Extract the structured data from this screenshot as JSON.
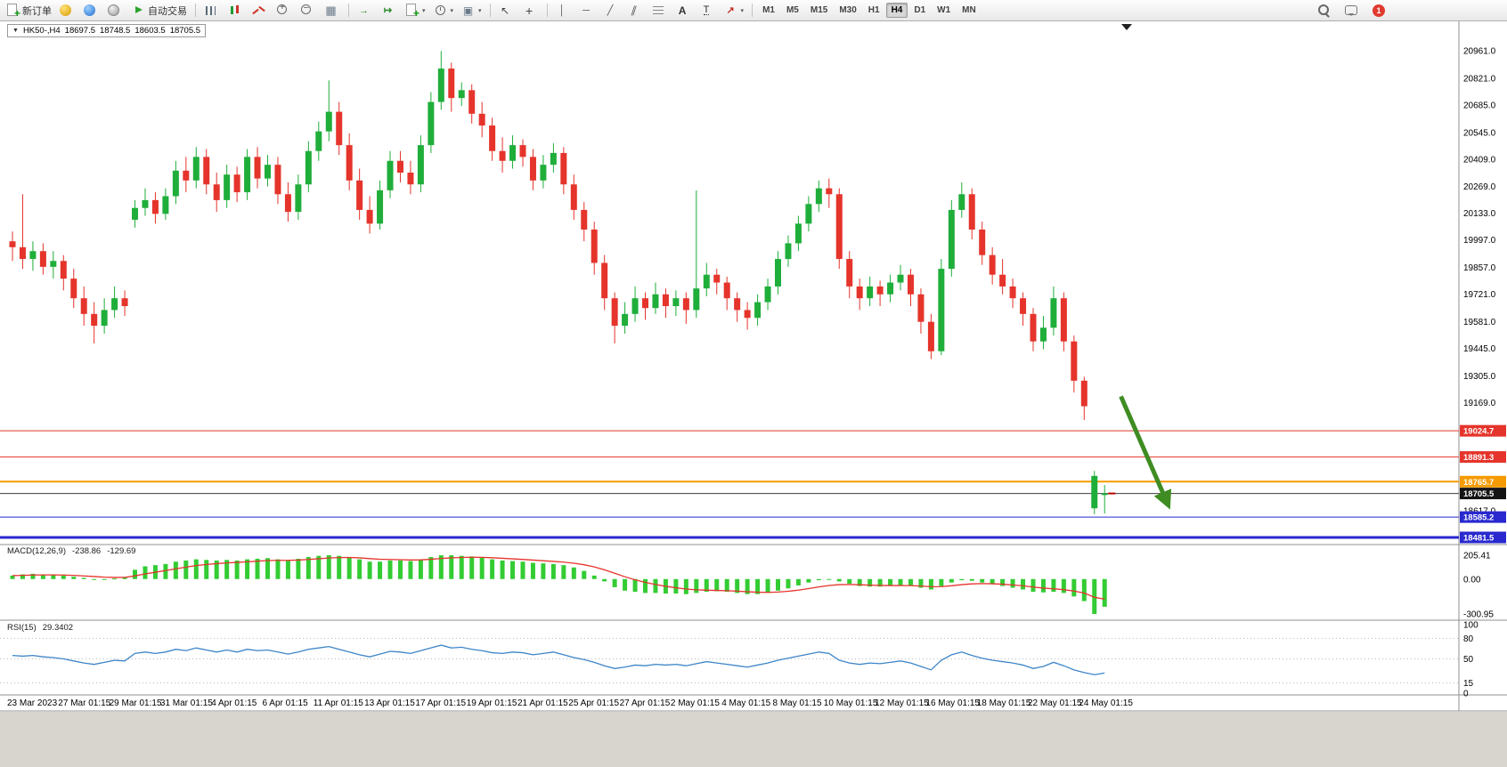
{
  "window": {
    "symbol_period": "HK50-,H4",
    "open": "18697.5",
    "high": "18748.5",
    "low": "18603.5",
    "close": "18705.5",
    "collapse_glyph": "▼"
  },
  "toolbar": {
    "dropdown_glyph": "▾",
    "groups": [
      {
        "type": "buttons",
        "items": [
          {
            "name": "new-order",
            "icon": "neworder",
            "label": "新订单"
          }
        ]
      },
      {
        "type": "buttons",
        "items": [
          {
            "name": "deposit",
            "icon": "gold"
          },
          {
            "name": "web-terminal",
            "icon": "globe"
          },
          {
            "name": "community",
            "icon": "round"
          }
        ]
      },
      {
        "type": "buttons",
        "items": [
          {
            "name": "autotrading",
            "icon": "play",
            "label": "自动交易"
          }
        ]
      },
      {
        "type": "sep"
      },
      {
        "type": "buttons",
        "items": [
          {
            "name": "bar-chart",
            "icon": "bars"
          },
          {
            "name": "candlestick-chart",
            "icon": "candle"
          },
          {
            "name": "line-chart",
            "icon": "linechart"
          }
        ]
      },
      {
        "type": "buttons",
        "items": [
          {
            "name": "zoom-in",
            "icon": "zin"
          },
          {
            "name": "zoom-out",
            "icon": "zout"
          }
        ]
      },
      {
        "type": "buttons",
        "items": [
          {
            "name": "tile-windows",
            "icon": "grid"
          }
        ]
      },
      {
        "type": "sep"
      },
      {
        "type": "buttons",
        "items": [
          {
            "name": "auto-scroll",
            "icon": "autoscroll"
          },
          {
            "name": "chart-shift",
            "icon": "shift"
          }
        ]
      },
      {
        "type": "buttons",
        "items": [
          {
            "name": "new-chart",
            "icon": "newchart",
            "dd": true
          },
          {
            "name": "periods",
            "icon": "clock",
            "dd": true
          },
          {
            "name": "templates",
            "icon": "template",
            "dd": true
          }
        ]
      },
      {
        "type": "sep"
      },
      {
        "type": "buttons",
        "items": [
          {
            "name": "cursor",
            "icon": "cursor"
          },
          {
            "name": "crosshair",
            "icon": "cross"
          }
        ]
      },
      {
        "type": "sep"
      },
      {
        "type": "buttons",
        "items": [
          {
            "name": "vertical-line",
            "icon": "vline"
          },
          {
            "name": "horizontal-line",
            "icon": "hline"
          },
          {
            "name": "trendline",
            "icon": "tline"
          },
          {
            "name": "equidistant-channel",
            "icon": "channel"
          },
          {
            "name": "fibonacci",
            "icon": "fibo"
          },
          {
            "name": "text",
            "icon": "textA"
          },
          {
            "name": "text-label",
            "icon": "label"
          },
          {
            "name": "arrows",
            "icon": "arrowtool",
            "dd": true
          }
        ]
      },
      {
        "type": "sep"
      },
      {
        "type": "timeframes"
      }
    ],
    "timeframes": [
      {
        "label": "M1"
      },
      {
        "label": "M5"
      },
      {
        "label": "M15"
      },
      {
        "label": "M30"
      },
      {
        "label": "H1"
      },
      {
        "label": "H4"
      },
      {
        "label": "D1"
      },
      {
        "label": "W1"
      },
      {
        "label": "MN"
      }
    ],
    "active_timeframe": "H4",
    "right": [
      {
        "name": "search",
        "icon": "searchm"
      },
      {
        "name": "chat",
        "icon": "chat"
      },
      {
        "name": "notifications",
        "icon": "badge",
        "badge": "1"
      }
    ]
  },
  "chart_data": {
    "type": "candlestick",
    "symbol": "HK50-",
    "timeframe": "H4",
    "axis_top_price": 20961,
    "axis_bottom_price": 18481.5,
    "price_axis_labels": [
      "20961.0",
      "20821.0",
      "20685.0",
      "20545.0",
      "20409.0",
      "20269.0",
      "20133.0",
      "19997.0",
      "19857.0",
      "19721.0",
      "19581.0",
      "19445.0",
      "19305.0",
      "19169.0",
      "18617.0"
    ],
    "colors": {
      "bull": "#1fae3a",
      "bear": "#e5342b"
    },
    "candles": [
      [
        19990,
        20040,
        19890,
        19960
      ],
      [
        19960,
        20230,
        19850,
        19900
      ],
      [
        19900,
        19990,
        19840,
        19940
      ],
      [
        19940,
        19980,
        19820,
        19860
      ],
      [
        19860,
        19940,
        19800,
        19890
      ],
      [
        19890,
        19920,
        19740,
        19800
      ],
      [
        19800,
        19850,
        19650,
        19700
      ],
      [
        19700,
        19760,
        19560,
        19620
      ],
      [
        19620,
        19680,
        19470,
        19560
      ],
      [
        19560,
        19700,
        19520,
        19640
      ],
      [
        19640,
        19760,
        19600,
        19700
      ],
      [
        19700,
        19740,
        19610,
        19660
      ],
      [
        20100,
        20200,
        20060,
        20160
      ],
      [
        20160,
        20260,
        20120,
        20200
      ],
      [
        20200,
        20240,
        20080,
        20130
      ],
      [
        20130,
        20260,
        20100,
        20220
      ],
      [
        20220,
        20400,
        20180,
        20350
      ],
      [
        20350,
        20420,
        20240,
        20300
      ],
      [
        20300,
        20470,
        20260,
        20420
      ],
      [
        20420,
        20460,
        20230,
        20280
      ],
      [
        20280,
        20340,
        20140,
        20200
      ],
      [
        20200,
        20380,
        20160,
        20330
      ],
      [
        20330,
        20370,
        20190,
        20240
      ],
      [
        20240,
        20460,
        20200,
        20420
      ],
      [
        20420,
        20470,
        20260,
        20310
      ],
      [
        20310,
        20430,
        20270,
        20380
      ],
      [
        20380,
        20420,
        20180,
        20230
      ],
      [
        20230,
        20290,
        20090,
        20140
      ],
      [
        20140,
        20330,
        20100,
        20280
      ],
      [
        20280,
        20500,
        20240,
        20450
      ],
      [
        20450,
        20600,
        20400,
        20550
      ],
      [
        20550,
        20810,
        20500,
        20650
      ],
      [
        20650,
        20700,
        20430,
        20480
      ],
      [
        20480,
        20540,
        20250,
        20300
      ],
      [
        20300,
        20360,
        20100,
        20150
      ],
      [
        20150,
        20220,
        20030,
        20080
      ],
      [
        20080,
        20300,
        20050,
        20250
      ],
      [
        20250,
        20450,
        20210,
        20400
      ],
      [
        20400,
        20450,
        20290,
        20340
      ],
      [
        20340,
        20400,
        20230,
        20280
      ],
      [
        20280,
        20530,
        20240,
        20480
      ],
      [
        20480,
        20750,
        20440,
        20700
      ],
      [
        20700,
        20960,
        20660,
        20870
      ],
      [
        20870,
        20900,
        20650,
        20720
      ],
      [
        20720,
        20800,
        20680,
        20760
      ],
      [
        20760,
        20790,
        20590,
        20640
      ],
      [
        20640,
        20700,
        20520,
        20580
      ],
      [
        20580,
        20620,
        20400,
        20450
      ],
      [
        20450,
        20520,
        20340,
        20400
      ],
      [
        20400,
        20530,
        20360,
        20480
      ],
      [
        20480,
        20510,
        20370,
        20420
      ],
      [
        20420,
        20460,
        20250,
        20300
      ],
      [
        20300,
        20430,
        20260,
        20380
      ],
      [
        20380,
        20490,
        20340,
        20440
      ],
      [
        20440,
        20470,
        20230,
        20280
      ],
      [
        20280,
        20330,
        20100,
        20150
      ],
      [
        20150,
        20190,
        19990,
        20050
      ],
      [
        20050,
        20090,
        19820,
        19880
      ],
      [
        19880,
        19920,
        19640,
        19700
      ],
      [
        19700,
        19730,
        19470,
        19560
      ],
      [
        19560,
        19680,
        19520,
        19620
      ],
      [
        19620,
        19760,
        19580,
        19700
      ],
      [
        19700,
        19730,
        19590,
        19650
      ],
      [
        19650,
        19780,
        19620,
        19720
      ],
      [
        19720,
        19750,
        19600,
        19660
      ],
      [
        19660,
        19740,
        19610,
        19700
      ],
      [
        19700,
        19730,
        19570,
        19640
      ],
      [
        19640,
        20250,
        19600,
        19750
      ],
      [
        19750,
        19880,
        19710,
        19820
      ],
      [
        19820,
        19850,
        19720,
        19780
      ],
      [
        19780,
        19810,
        19640,
        19700
      ],
      [
        19700,
        19730,
        19580,
        19640
      ],
      [
        19640,
        19680,
        19540,
        19600
      ],
      [
        19600,
        19720,
        19560,
        19680
      ],
      [
        19680,
        19800,
        19640,
        19760
      ],
      [
        19760,
        19940,
        19720,
        19900
      ],
      [
        19900,
        20020,
        19860,
        19980
      ],
      [
        19980,
        20120,
        19940,
        20080
      ],
      [
        20080,
        20220,
        20040,
        20180
      ],
      [
        20180,
        20300,
        20140,
        20260
      ],
      [
        20260,
        20310,
        20160,
        20230
      ],
      [
        20230,
        20260,
        19850,
        19900
      ],
      [
        19900,
        19940,
        19700,
        19760
      ],
      [
        19760,
        19800,
        19640,
        19700
      ],
      [
        19700,
        19810,
        19660,
        19760
      ],
      [
        19760,
        19790,
        19660,
        19720
      ],
      [
        19720,
        19820,
        19680,
        19780
      ],
      [
        19780,
        19870,
        19740,
        19820
      ],
      [
        19820,
        19850,
        19660,
        19720
      ],
      [
        19720,
        19750,
        19520,
        19580
      ],
      [
        19580,
        19620,
        19390,
        19430
      ],
      [
        19430,
        19900,
        19410,
        19850
      ],
      [
        19850,
        20200,
        19810,
        20150
      ],
      [
        20150,
        20290,
        20110,
        20230
      ],
      [
        20230,
        20260,
        20000,
        20050
      ],
      [
        20050,
        20090,
        19870,
        19920
      ],
      [
        19920,
        19960,
        19770,
        19820
      ],
      [
        19820,
        19900,
        19720,
        19760
      ],
      [
        19760,
        19800,
        19650,
        19700
      ],
      [
        19700,
        19730,
        19560,
        19620
      ],
      [
        19620,
        19650,
        19430,
        19480
      ],
      [
        19480,
        19610,
        19440,
        19550
      ],
      [
        19550,
        19760,
        19510,
        19700
      ],
      [
        19700,
        19730,
        19430,
        19480
      ],
      [
        19480,
        19510,
        19220,
        19280
      ],
      [
        19280,
        19300,
        19080,
        19150
      ],
      [
        18630,
        18820,
        18600,
        18795
      ],
      [
        18697.5,
        18748.5,
        18603.5,
        18705.5
      ]
    ],
    "x_labels": [
      "23 Mar 2023",
      "27 Mar 01:15",
      "29 Mar 01:15",
      "31 Mar 01:15",
      "4 Apr 01:15",
      "6 Apr 01:15",
      "11 Apr 01:15",
      "13 Apr 01:15",
      "17 Apr 01:15",
      "19 Apr 01:15",
      "21 Apr 01:15",
      "25 Apr 01:15",
      "27 Apr 01:15",
      "2 May 01:15",
      "4 May 01:15",
      "8 May 01:15",
      "10 May 01:15",
      "12 May 01:15",
      "16 May 01:15",
      "18 May 01:15",
      "22 May 01:15",
      "24 May 01:15"
    ],
    "x_label_step": 5,
    "hlines": [
      {
        "price": 19024.7,
        "label": "19024.7",
        "color": "#e5342b",
        "tag": "#e5342b",
        "w": 1
      },
      {
        "price": 18891.3,
        "label": "18891.3",
        "color": "#e5342b",
        "tag": "#e5342b",
        "w": 1
      },
      {
        "price": 18765.7,
        "label": "18765.7",
        "color": "#f59a00",
        "tag": "#f59a00",
        "w": 2
      },
      {
        "price": 18705.5,
        "label": "18705.5",
        "color": "#3c3c3c",
        "tag": "#141414",
        "w": 1
      },
      {
        "price": 18585.2,
        "label": "18585.2",
        "color": "#2929cf",
        "tag": "#2929cf",
        "w": 1
      },
      {
        "price": 18481.5,
        "label": "18481.5",
        "color": "#2929cf",
        "tag": "#2929cf",
        "w": 3
      }
    ],
    "arrow": {
      "from_index": 108.6,
      "from_price": 19200,
      "to_index": 113.2,
      "to_price": 18650,
      "color": "#3e8c22",
      "width": 5
    },
    "macd": {
      "label": "MACD(12,26,9)",
      "value_main": "-238.86",
      "value_signal": "-129.69",
      "axis_labels": [
        "205.41",
        "0.00",
        "-300.95"
      ],
      "range": [
        -300.95,
        205.41
      ],
      "histogram_color": "#33cc33",
      "signal_color": "#e5342b",
      "histogram": [
        30,
        40,
        45,
        40,
        35,
        30,
        20,
        10,
        0,
        -5,
        5,
        15,
        80,
        110,
        120,
        130,
        150,
        160,
        170,
        165,
        160,
        165,
        160,
        170,
        175,
        180,
        170,
        160,
        175,
        190,
        200,
        205.41,
        200,
        190,
        170,
        150,
        150,
        160,
        160,
        155,
        170,
        190,
        205,
        205,
        200,
        195,
        185,
        170,
        160,
        155,
        150,
        140,
        135,
        130,
        120,
        100,
        70,
        30,
        -20,
        -70,
        -100,
        -110,
        -120,
        -120,
        -125,
        -125,
        -130,
        -120,
        -110,
        -105,
        -110,
        -120,
        -130,
        -130,
        -120,
        -100,
        -80,
        -55,
        -30,
        -10,
        -5,
        -20,
        -40,
        -60,
        -65,
        -65,
        -60,
        -55,
        -60,
        -75,
        -90,
        -60,
        -30,
        -10,
        -15,
        -30,
        -45,
        -60,
        -75,
        -90,
        -110,
        -115,
        -110,
        -120,
        -150,
        -190,
        -300.95,
        -238.86
      ]
    },
    "rsi": {
      "label": "RSI(15)",
      "value_text": "29.3402",
      "axis_labels": [
        "100",
        "80",
        "50",
        "15",
        "0"
      ],
      "levels": [
        80,
        50,
        15
      ],
      "range": [
        0,
        100
      ],
      "line_color": "#3d85c8",
      "values": [
        55,
        54,
        55,
        53,
        52,
        50,
        47,
        44,
        42,
        45,
        48,
        47,
        58,
        60,
        58,
        60,
        64,
        62,
        66,
        63,
        60,
        63,
        60,
        64,
        62,
        63,
        60,
        57,
        60,
        64,
        66,
        68,
        64,
        60,
        56,
        53,
        57,
        61,
        60,
        58,
        62,
        66,
        70,
        66,
        67,
        64,
        62,
        59,
        58,
        60,
        59,
        56,
        58,
        60,
        56,
        52,
        49,
        45,
        40,
        36,
        38,
        41,
        40,
        42,
        41,
        42,
        40,
        43,
        46,
        44,
        42,
        40,
        38,
        41,
        44,
        48,
        51,
        54,
        57,
        60,
        58,
        48,
        44,
        42,
        44,
        43,
        45,
        47,
        44,
        39,
        34,
        48,
        56,
        60,
        55,
        51,
        48,
        46,
        44,
        41,
        36,
        39,
        45,
        40,
        34,
        30,
        27,
        29.34
      ]
    }
  }
}
